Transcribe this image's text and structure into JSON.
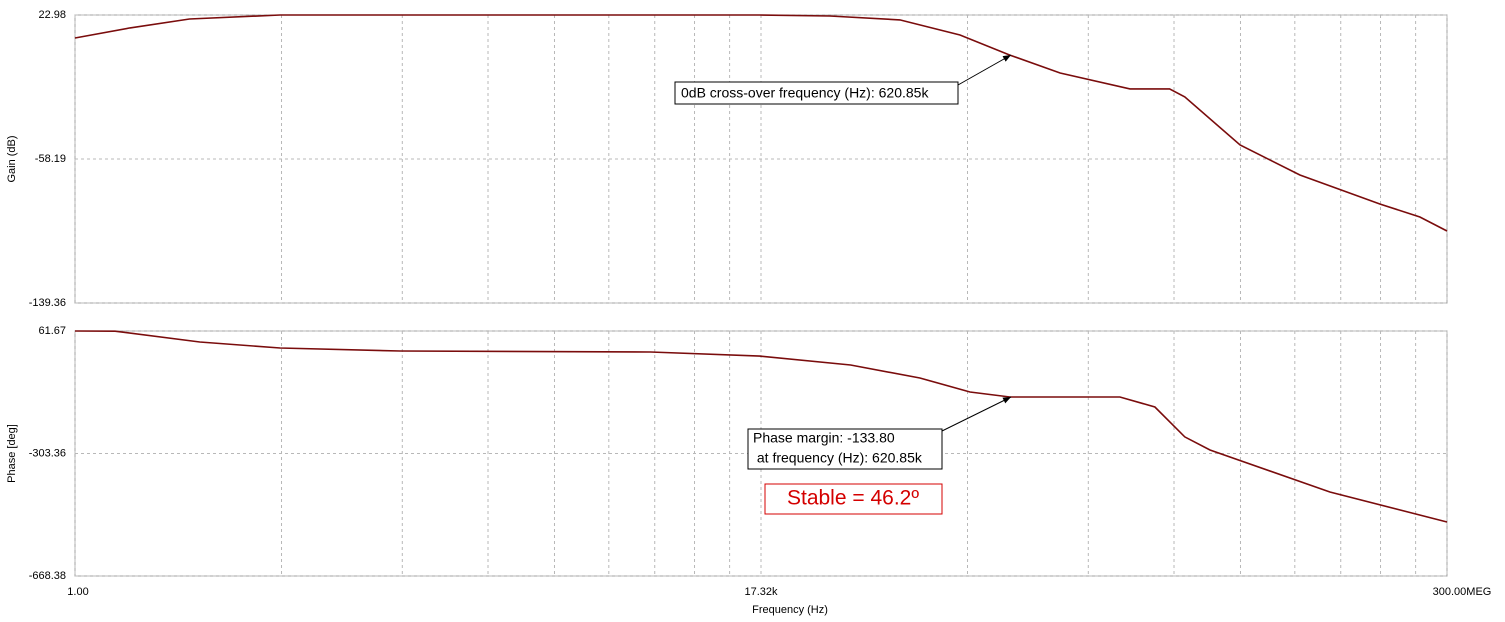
{
  "chart_data": [
    {
      "type": "line",
      "ylabel": "Gain (dB)",
      "x": [
        1,
        2.19,
        5.1,
        18.5,
        17000,
        46000,
        125000,
        294000,
        598000,
        1220000,
        3300000,
        5800000,
        7200000,
        15800000,
        37000000,
        116000000,
        204000000,
        300000000
      ],
      "series": [
        {
          "name": "Gain",
          "color": "#7a0c0c",
          "values": [
            10.0,
            15.7,
            20.7,
            22.98,
            22.98,
            22.4,
            20.2,
            11.7,
            0.4,
            -9.7,
            -18.7,
            -18.7,
            -23.2,
            -50.3,
            -67.2,
            -83.6,
            -90.9,
            -98.8
          ]
        }
      ],
      "xlim": [
        1,
        300000000
      ],
      "xticks": [
        1,
        17320,
        300000000
      ],
      "log_x": true,
      "ylim": [
        -139.36,
        22.98
      ],
      "yticks": [
        -139.36,
        -58.19,
        22.98
      ],
      "grid": true,
      "annotations": [
        {
          "text": "0dB cross-over frequency (Hz): 620.85k"
        }
      ]
    },
    {
      "type": "line",
      "ylabel": "Phase [deg]",
      "xlabel": "Frequency (Hz)",
      "x": [
        1,
        1.77,
        5.9,
        18.5,
        102,
        3600,
        17000,
        62000,
        166000,
        339000,
        598000,
        2860000,
        4700000,
        7200000,
        10300000,
        56700000,
        300000000
      ],
      "series": [
        {
          "name": "Phase",
          "color": "#7a0c0c",
          "values": [
            61.67,
            61,
            28.9,
            11,
            2,
            -1,
            -13,
            -39.6,
            -78.4,
            -120,
            -135,
            -135,
            -164.8,
            -254,
            -293,
            -418,
            -507.5
          ]
        }
      ],
      "xlim": [
        1,
        300000000
      ],
      "xticks": [
        {
          "value": 1,
          "label": "1.00"
        },
        {
          "value": 17320,
          "label": "17.32k"
        },
        {
          "value": 300000000,
          "label": "300.00MEG"
        }
      ],
      "log_x": true,
      "ylim": [
        -668.38,
        61.67
      ],
      "yticks": [
        -668.38,
        -303.36,
        61.67
      ],
      "grid": true,
      "annotations": [
        {
          "text": "Phase margin: -133.80"
        },
        {
          "text": " at frequency (Hz): 620.85k"
        },
        {
          "text": "Stable = 46.2º"
        }
      ]
    }
  ]
}
